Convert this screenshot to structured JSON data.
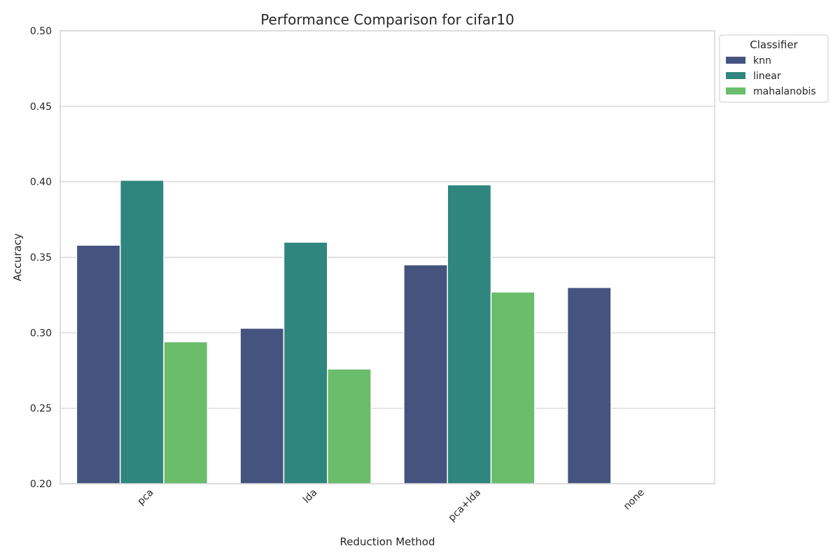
{
  "chart_data": {
    "type": "bar",
    "title": "Performance Comparison for cifar10",
    "xlabel": "Reduction Method",
    "ylabel": "Accuracy",
    "categories": [
      "pca",
      "lda",
      "pca+lda",
      "none"
    ],
    "ylim": [
      0.2,
      0.5
    ],
    "yticks": [
      "0.20",
      "0.25",
      "0.30",
      "0.35",
      "0.40",
      "0.45",
      "0.50"
    ],
    "grid": true,
    "legend": {
      "title": "Classifier",
      "placement": "outside-top-right"
    },
    "series": [
      {
        "name": "knn",
        "color": "#45547f",
        "values": [
          0.358,
          0.303,
          0.345,
          0.33
        ]
      },
      {
        "name": "linear",
        "color": "#2e867e",
        "values": [
          0.401,
          0.36,
          0.398,
          null
        ]
      },
      {
        "name": "mahalanobis",
        "color": "#6abd6b",
        "values": [
          0.294,
          0.276,
          0.327,
          null
        ]
      }
    ]
  }
}
